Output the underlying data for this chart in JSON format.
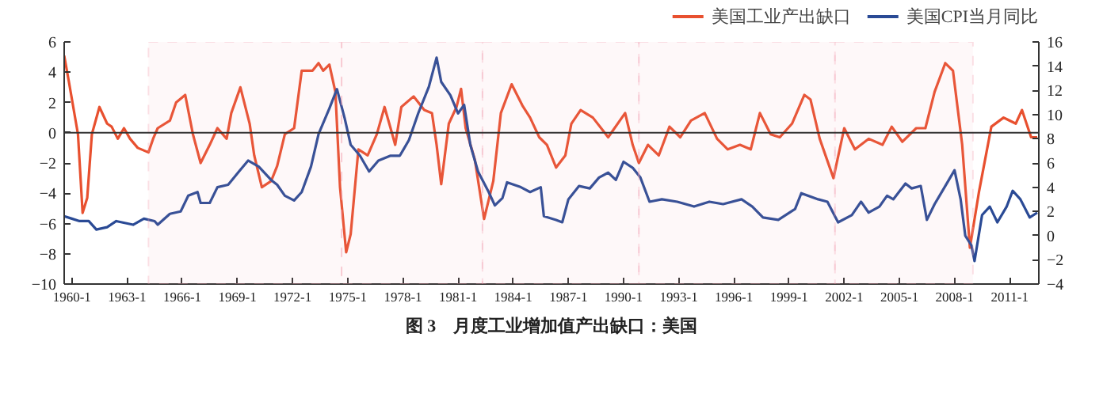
{
  "chart_data": {
    "type": "line",
    "title": "图 3　月度工业增加值产出缺口：美国",
    "xlim": [
      "1959-08",
      "2012-08"
    ],
    "xticks": [
      {
        "value": "1960-01",
        "label": "1960-1"
      },
      {
        "value": "1963-01",
        "label": "1963-1"
      },
      {
        "value": "1966-01",
        "label": "1966-1"
      },
      {
        "value": "1969-01",
        "label": "1969-1"
      },
      {
        "value": "1972-01",
        "label": "1972-1"
      },
      {
        "value": "1975-01",
        "label": "1975-1"
      },
      {
        "value": "1978-01",
        "label": "1978-1"
      },
      {
        "value": "1981-01",
        "label": "1981-1"
      },
      {
        "value": "1984-01",
        "label": "1984-1"
      },
      {
        "value": "1987-01",
        "label": "1987-1"
      },
      {
        "value": "1990-01",
        "label": "1990-1"
      },
      {
        "value": "1993-01",
        "label": "1993-1"
      },
      {
        "value": "1996-01",
        "label": "1996-1"
      },
      {
        "value": "1999-01",
        "label": "1999-1"
      },
      {
        "value": "2002-01",
        "label": "2002-1"
      },
      {
        "value": "2005-01",
        "label": "2005-1"
      },
      {
        "value": "2008-01",
        "label": "2008-1"
      },
      {
        "value": "2011-01",
        "label": "2011-1"
      }
    ],
    "ylim": [
      -10,
      6
    ],
    "yticks": [
      -10,
      -8,
      -6,
      -4,
      -2,
      0,
      2,
      4,
      6
    ],
    "y2lim": [
      -4,
      16
    ],
    "y2ticks": [
      -4,
      -2,
      0,
      2,
      4,
      6,
      8,
      10,
      12,
      14,
      16
    ],
    "legend": "top right",
    "line_style": "solid",
    "ref_lines": [
      {
        "axis": "y",
        "value": 0,
        "color": "#333333",
        "line_style": "solid"
      }
    ],
    "bands": [
      {
        "axis": "x",
        "from": "1964-03",
        "to": "1974-09",
        "color": "#f2a0b0"
      },
      {
        "axis": "x",
        "from": "1974-09",
        "to": "1982-05",
        "color": "#f2a0b0"
      },
      {
        "axis": "x",
        "from": "1982-05",
        "to": "1990-11",
        "color": "#f2a0b0"
      },
      {
        "axis": "x",
        "from": "1990-11",
        "to": "2001-07",
        "color": "#f2a0b0"
      },
      {
        "axis": "x",
        "from": "2001-07",
        "to": "2009-01",
        "color": "#f2a0b0"
      }
    ],
    "series": [
      {
        "name": "美国工业产出缺口",
        "color": "#e8502f",
        "x": [
          "1959-08",
          "1959-11",
          "1960-05",
          "1960-08",
          "1960-11",
          "1961-02",
          "1961-07",
          "1961-12",
          "1962-03",
          "1962-07",
          "1962-11",
          "1963-03",
          "1963-08",
          "1964-03",
          "1964-06",
          "1964-09",
          "1965-05",
          "1965-09",
          "1966-03",
          "1966-08",
          "1967-01",
          "1967-07",
          "1967-12",
          "1968-06",
          "1968-09",
          "1969-03",
          "1969-09",
          "1969-12",
          "1970-05",
          "1970-11",
          "1971-03",
          "1971-08",
          "1972-02",
          "1972-07",
          "1973-02",
          "1973-06",
          "1973-09",
          "1974-01",
          "1974-05",
          "1974-08",
          "1974-12",
          "1975-03",
          "1975-08",
          "1976-02",
          "1976-08",
          "1977-01",
          "1977-05",
          "1977-08",
          "1977-12",
          "1978-08",
          "1979-03",
          "1979-08",
          "1979-11",
          "1980-02",
          "1980-07",
          "1980-12",
          "1981-03",
          "1981-06",
          "1981-12",
          "1982-06",
          "1982-12",
          "1983-05",
          "1983-12",
          "1984-07",
          "1984-12",
          "1985-06",
          "1985-11",
          "1986-05",
          "1986-11",
          "1987-03",
          "1987-09",
          "1988-05",
          "1989-03",
          "1990-02",
          "1990-07",
          "1990-11",
          "1991-05",
          "1991-12",
          "1992-07",
          "1993-02",
          "1993-09",
          "1994-06",
          "1995-02",
          "1995-09",
          "1996-05",
          "1996-12",
          "1997-06",
          "1998-01",
          "1998-07",
          "1999-03",
          "1999-11",
          "2000-03",
          "2000-09",
          "2001-06",
          "2002-01",
          "2002-08",
          "2003-05",
          "2004-02",
          "2004-08",
          "2005-03",
          "2005-12",
          "2006-06",
          "2006-12",
          "2007-07",
          "2007-12",
          "2008-06",
          "2008-11",
          "2009-05",
          "2010-01",
          "2010-09",
          "2011-05",
          "2011-09",
          "2012-03",
          "2012-07"
        ],
        "values": [
          5.1,
          3.4,
          -0.1,
          -5.3,
          -4.3,
          -0.1,
          1.7,
          0.6,
          0.4,
          -0.4,
          0.3,
          -0.4,
          -1.0,
          -1.3,
          -0.4,
          0.3,
          0.8,
          2.0,
          2.5,
          -0.1,
          -2.0,
          -0.8,
          0.3,
          -0.4,
          1.3,
          3.0,
          0.6,
          -1.5,
          -3.6,
          -3.2,
          -2.2,
          -0.1,
          0.3,
          4.1,
          4.1,
          4.6,
          4.1,
          4.5,
          2.7,
          -3.6,
          -7.9,
          -6.7,
          -1.1,
          -1.5,
          -0.1,
          1.7,
          0.3,
          -0.8,
          1.7,
          2.4,
          1.5,
          1.3,
          -0.8,
          -3.4,
          0.6,
          1.7,
          2.9,
          0.3,
          -1.8,
          -5.7,
          -3.2,
          1.3,
          3.2,
          1.8,
          1.0,
          -0.3,
          -0.8,
          -2.3,
          -1.5,
          0.6,
          1.5,
          1.0,
          -0.3,
          1.3,
          -0.8,
          -2.0,
          -0.8,
          -1.5,
          0.4,
          -0.3,
          0.8,
          1.3,
          -0.4,
          -1.1,
          -0.8,
          -1.1,
          1.3,
          -0.1,
          -0.3,
          0.6,
          2.5,
          2.2,
          -0.4,
          -3.0,
          0.3,
          -1.1,
          -0.4,
          -0.8,
          0.4,
          -0.6,
          0.3,
          0.3,
          2.7,
          4.6,
          4.1,
          -0.8,
          -7.6,
          -3.9,
          0.4,
          1.0,
          0.6,
          1.5,
          -0.3,
          -0.3
        ]
      },
      {
        "name": "美国CPI当月同比",
        "color": "#2a4a95",
        "axis": "y2",
        "x": [
          "1959-08",
          "1960-01",
          "1960-06",
          "1960-12",
          "1961-05",
          "1961-12",
          "1962-06",
          "1963-05",
          "1963-12",
          "1964-07",
          "1964-09",
          "1965-05",
          "1965-12",
          "1966-05",
          "1966-11",
          "1967-01",
          "1967-07",
          "1967-12",
          "1968-07",
          "1969-02",
          "1969-08",
          "1970-03",
          "1970-11",
          "1971-03",
          "1971-08",
          "1972-02",
          "1972-07",
          "1973-01",
          "1973-06",
          "1974-01",
          "1974-06",
          "1974-11",
          "1975-03",
          "1975-09",
          "1976-03",
          "1976-09",
          "1977-05",
          "1977-11",
          "1978-05",
          "1978-11",
          "1979-06",
          "1979-11",
          "1980-02",
          "1980-08",
          "1981-01",
          "1981-05",
          "1981-09",
          "1982-02",
          "1982-09",
          "1983-01",
          "1983-06",
          "1983-09",
          "1984-06",
          "1984-12",
          "1985-07",
          "1985-09",
          "1986-05",
          "1986-09",
          "1987-01",
          "1987-08",
          "1988-03",
          "1988-09",
          "1989-03",
          "1989-08",
          "1990-01",
          "1990-07",
          "1990-12",
          "1991-06",
          "1992-02",
          "1992-12",
          "1993-11",
          "1994-09",
          "1995-06",
          "1996-06",
          "1997-01",
          "1997-08",
          "1998-06",
          "1999-05",
          "1999-09",
          "2000-08",
          "2001-02",
          "2001-09",
          "2002-06",
          "2002-12",
          "2003-05",
          "2003-12",
          "2004-05",
          "2004-09",
          "2005-05",
          "2005-09",
          "2006-03",
          "2006-07",
          "2006-12",
          "2007-07",
          "2008-01",
          "2008-05",
          "2008-08",
          "2008-12",
          "2009-02",
          "2009-07",
          "2009-12",
          "2010-05",
          "2010-11",
          "2011-03",
          "2011-08",
          "2012-02",
          "2012-07"
        ],
        "values": [
          1.6,
          1.4,
          1.2,
          1.2,
          0.5,
          0.7,
          1.2,
          0.9,
          1.4,
          1.2,
          0.9,
          1.8,
          2.0,
          3.3,
          3.6,
          2.7,
          2.7,
          4.0,
          4.2,
          5.3,
          6.2,
          5.7,
          4.6,
          4.2,
          3.3,
          2.9,
          3.6,
          5.7,
          8.4,
          10.5,
          12.1,
          9.7,
          7.5,
          6.6,
          5.3,
          6.2,
          6.6,
          6.6,
          7.9,
          10.1,
          12.3,
          14.7,
          12.7,
          11.6,
          10.1,
          10.8,
          7.5,
          5.3,
          3.6,
          2.5,
          3.1,
          4.4,
          4.0,
          3.6,
          4.0,
          1.6,
          1.3,
          1.1,
          3.0,
          4.1,
          3.9,
          4.8,
          5.2,
          4.6,
          6.1,
          5.6,
          4.8,
          2.8,
          3.0,
          2.8,
          2.4,
          2.8,
          2.6,
          3.0,
          2.4,
          1.5,
          1.3,
          2.2,
          3.5,
          3.0,
          2.8,
          1.1,
          1.7,
          2.8,
          1.9,
          2.4,
          3.3,
          3.0,
          4.3,
          3.9,
          4.1,
          1.3,
          2.6,
          4.1,
          5.4,
          3.0,
          0.0,
          -0.8,
          -2.1,
          1.7,
          2.4,
          1.1,
          2.4,
          3.7,
          3.0,
          1.5,
          1.9
        ]
      }
    ]
  }
}
